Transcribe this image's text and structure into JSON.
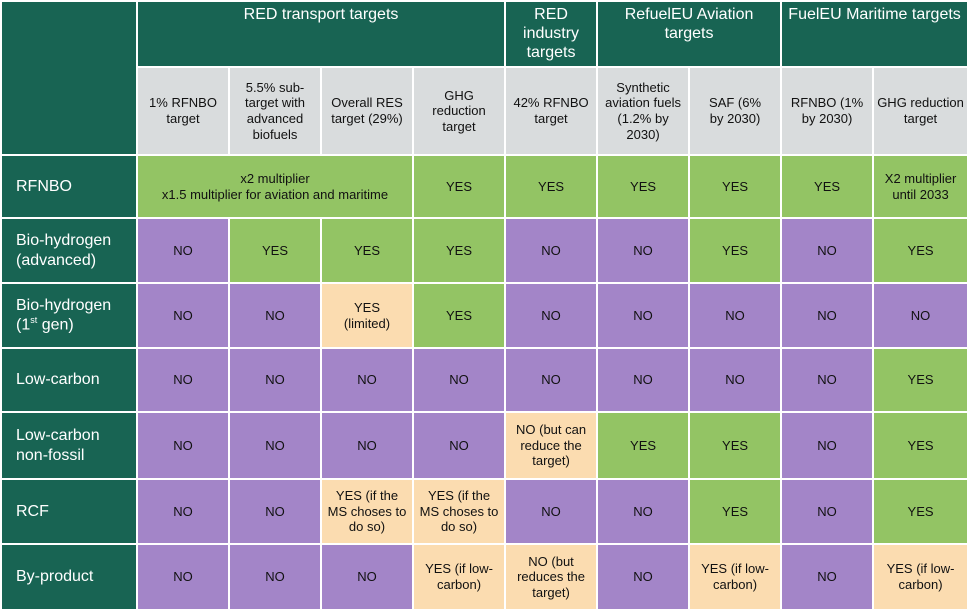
{
  "groups": {
    "red_transport": "RED transport targets",
    "red_industry": "RED industry targets",
    "refueleu": "RefuelEU Aviation targets",
    "fueleu": "FuelEU Maritime targets"
  },
  "subheaders": [
    "1% RFNBO target",
    "5.5% sub-target with advanced biofuels",
    "Overall RES target (29%)",
    "GHG reduction target",
    "42% RFNBO target",
    "Synthetic aviation fuels (1.2% by 2030)",
    "SAF (6% by 2030)",
    "RFNBO (1% by 2030)",
    "GHG reduction target"
  ],
  "rows": [
    {
      "label": "RFNBO",
      "multiplier": [
        "x2 multiplier",
        "x1.5 multiplier for aviation and maritime"
      ],
      "cells": [
        "YES",
        "YES",
        "YES",
        "YES",
        "YES",
        "X2 multiplier until 2033"
      ]
    },
    {
      "label": "Bio-hydrogen (advanced)",
      "cells": [
        "NO",
        "YES",
        "YES",
        "YES",
        "NO",
        "NO",
        "YES",
        "NO",
        "YES"
      ]
    },
    {
      "label_main": "Bio-hydrogen (1",
      "label_sup": "st",
      "label_end": " gen)",
      "cells": [
        "NO",
        "NO",
        "YES (limited)",
        "YES",
        "NO",
        "NO",
        "NO",
        "NO",
        "NO"
      ]
    },
    {
      "label": "Low-carbon",
      "cells": [
        "NO",
        "NO",
        "NO",
        "NO",
        "NO",
        "NO",
        "NO",
        "NO",
        "YES"
      ]
    },
    {
      "label": "Low-carbon non-fossil",
      "cells": [
        "NO",
        "NO",
        "NO",
        "NO",
        "NO (but can reduce the target)",
        "YES",
        "YES",
        "NO",
        "YES"
      ]
    },
    {
      "label": "RCF",
      "cells": [
        "NO",
        "NO",
        "YES (if the MS choses to do so)",
        "YES (if the MS choses to do so)",
        "NO",
        "NO",
        "YES",
        "NO",
        "YES"
      ]
    },
    {
      "label": "By-product",
      "cells": [
        "NO",
        "NO",
        "NO",
        "YES (if low-carbon)",
        "NO (but reduces the target)",
        "NO",
        "YES (if low-carbon)",
        "NO",
        "YES (if low-carbon)"
      ]
    }
  ],
  "colors": {
    "header": "#186453",
    "subheader": "#d9dcdd",
    "yes": "#93c464",
    "no": "#a385c8",
    "partial": "#fbdcb0"
  }
}
